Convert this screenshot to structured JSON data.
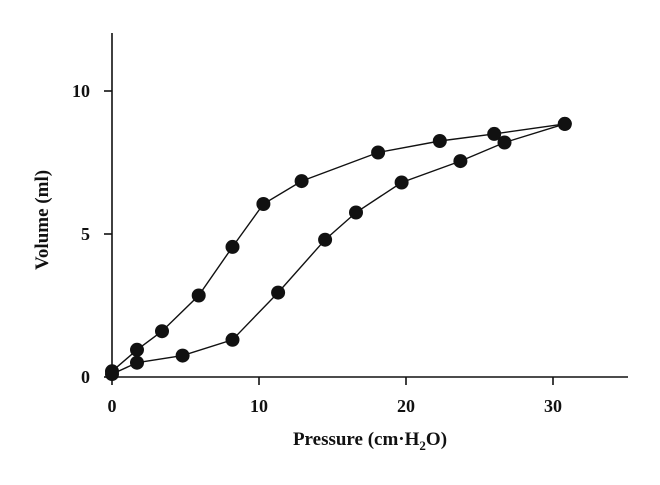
{
  "chart_data": {
    "type": "line",
    "title": "",
    "xlabel": "Pressure (cm·H",
    "xlabel_subscript": "2",
    "xlabel_suffix": "O)",
    "ylabel": "Volume (ml)",
    "xlim": [
      0,
      35
    ],
    "ylim": [
      0,
      12
    ],
    "x_ticks": [
      0,
      10,
      20,
      30
    ],
    "x_tick_labels": [
      "0",
      "10",
      "20",
      "30"
    ],
    "y_ticks": [
      0,
      5,
      10
    ],
    "y_tick_labels": [
      "0",
      "5",
      "10"
    ],
    "grid": false,
    "series": [
      {
        "x": [
          0,
          1.7,
          3.4,
          5.9,
          8.2,
          10.3,
          12.9,
          18.1,
          22.3,
          26.0,
          30.8
        ],
        "y": [
          0.2,
          0.95,
          1.6,
          2.85,
          4.55,
          6.05,
          6.85,
          7.85,
          8.25,
          8.5,
          8.85
        ]
      },
      {
        "x": [
          0,
          1.7,
          4.8,
          8.2,
          11.3,
          14.5,
          16.6,
          19.7,
          23.7,
          26.7,
          30.8
        ],
        "y": [
          0.1,
          0.5,
          0.75,
          1.3,
          2.95,
          4.8,
          5.75,
          6.8,
          7.55,
          8.2,
          8.85
        ]
      }
    ],
    "colors": {
      "line": "#111111",
      "marker": "#111111"
    }
  }
}
